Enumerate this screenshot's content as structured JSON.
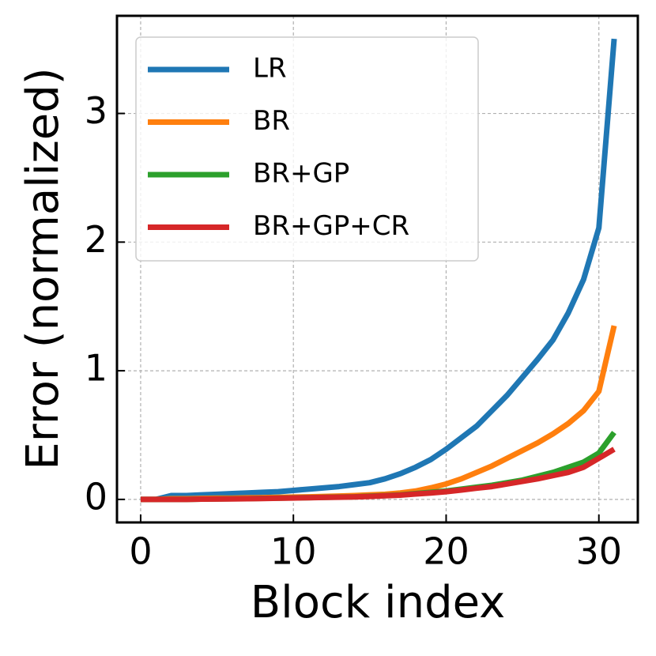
{
  "chart_data": {
    "type": "line",
    "xlabel": "Block index",
    "ylabel": "Error (normalized)",
    "x": [
      0,
      1,
      2,
      3,
      4,
      5,
      6,
      7,
      8,
      9,
      10,
      11,
      12,
      13,
      14,
      15,
      16,
      17,
      18,
      19,
      20,
      21,
      22,
      23,
      24,
      25,
      26,
      27,
      28,
      29,
      30,
      31
    ],
    "series": [
      {
        "name": "LR",
        "color": "#1f77b4",
        "values": [
          0,
          0,
          0.03,
          0.03,
          0.035,
          0.04,
          0.045,
          0.05,
          0.055,
          0.06,
          0.07,
          0.08,
          0.09,
          0.1,
          0.115,
          0.13,
          0.16,
          0.2,
          0.25,
          0.31,
          0.39,
          0.48,
          0.57,
          0.69,
          0.81,
          0.95,
          1.09,
          1.24,
          1.45,
          1.71,
          2.11,
          3.58
        ]
      },
      {
        "name": "BR",
        "color": "#ff7f0e",
        "values": [
          0,
          0,
          0.005,
          0.005,
          0.008,
          0.01,
          0.01,
          0.012,
          0.014,
          0.016,
          0.018,
          0.02,
          0.023,
          0.026,
          0.03,
          0.035,
          0.04,
          0.05,
          0.065,
          0.09,
          0.12,
          0.16,
          0.21,
          0.26,
          0.32,
          0.38,
          0.44,
          0.51,
          0.59,
          0.69,
          0.84,
          1.35
        ]
      },
      {
        "name": "BR+GP",
        "color": "#2ca02c",
        "values": [
          0,
          0,
          0,
          0,
          0.002,
          0.004,
          0.005,
          0.006,
          0.008,
          0.01,
          0.012,
          0.014,
          0.016,
          0.018,
          0.02,
          0.025,
          0.03,
          0.035,
          0.045,
          0.055,
          0.065,
          0.08,
          0.095,
          0.11,
          0.13,
          0.15,
          0.18,
          0.21,
          0.25,
          0.29,
          0.36,
          0.52
        ]
      },
      {
        "name": "BR+GP+CR",
        "color": "#d62728",
        "values": [
          0,
          0,
          0,
          0,
          0.002,
          0.003,
          0.004,
          0.005,
          0.007,
          0.009,
          0.011,
          0.013,
          0.015,
          0.017,
          0.019,
          0.023,
          0.028,
          0.033,
          0.042,
          0.05,
          0.06,
          0.073,
          0.087,
          0.1,
          0.12,
          0.14,
          0.16,
          0.185,
          0.21,
          0.25,
          0.32,
          0.39
        ]
      }
    ],
    "xlim": [
      -1.55,
      32.55
    ],
    "ylim": [
      -0.179,
      3.759
    ],
    "xticks": [
      0,
      10,
      20,
      30
    ],
    "yticks": [
      0,
      1,
      2,
      3
    ],
    "grid": true,
    "legend": "upper left"
  }
}
